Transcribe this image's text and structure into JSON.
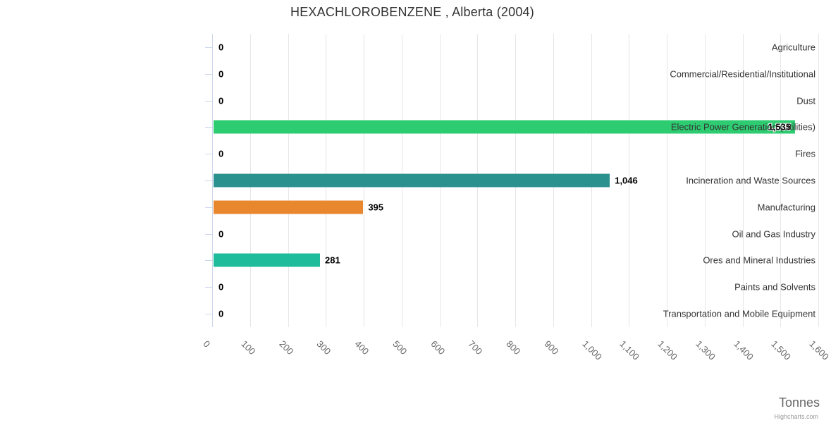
{
  "title": "HEXACHLOROBENZENE , Alberta (2004)",
  "axis_title": "Tonnes",
  "credit": "Highcharts.com",
  "colors": {
    "title_text": "#333333",
    "category_text": "#333333",
    "tick_label_text": "#666666",
    "axis_line": "#ccd6eb",
    "gridline": "#e6e6e6",
    "value_label_text": "#000000"
  },
  "chart_data": {
    "type": "bar",
    "orientation": "horizontal",
    "title": "HEXACHLOROBENZENE , Alberta (2004)",
    "categories": [
      "Agriculture",
      "Commercial/Residential/Institutional",
      "Dust",
      "Electric Power Generation (Utilities)",
      "Fires",
      "Incineration and Waste Sources",
      "Manufacturing",
      "Oil and Gas Industry",
      "Ores and Mineral Industries",
      "Paints and Solvents",
      "Transportation and Mobile Equipment"
    ],
    "values": [
      0,
      0,
      0,
      1535,
      0,
      1046,
      395,
      0,
      281,
      0,
      0
    ],
    "value_labels": [
      "0",
      "0",
      "0",
      "1,535",
      "0",
      "1,046",
      "395",
      "0",
      "281",
      "0",
      "0"
    ],
    "bar_colors": [
      null,
      null,
      null,
      "#2ecc71",
      null,
      "#2b918f",
      "#e8872e",
      null,
      "#1fbc9c",
      null,
      null
    ],
    "xlabel": "Tonnes",
    "xlim": [
      0,
      1600
    ],
    "tick_interval": 100,
    "tick_values": [
      0,
      100,
      200,
      300,
      400,
      500,
      600,
      700,
      800,
      900,
      1000,
      1100,
      1200,
      1300,
      1400,
      1500,
      1600
    ],
    "tick_labels": [
      "0",
      "100",
      "200",
      "300",
      "400",
      "500",
      "600",
      "700",
      "800",
      "900",
      "1,000",
      "1,100",
      "1,200",
      "1,300",
      "1,400",
      "1,500",
      "1,600"
    ],
    "grid": true,
    "legend": "none"
  }
}
